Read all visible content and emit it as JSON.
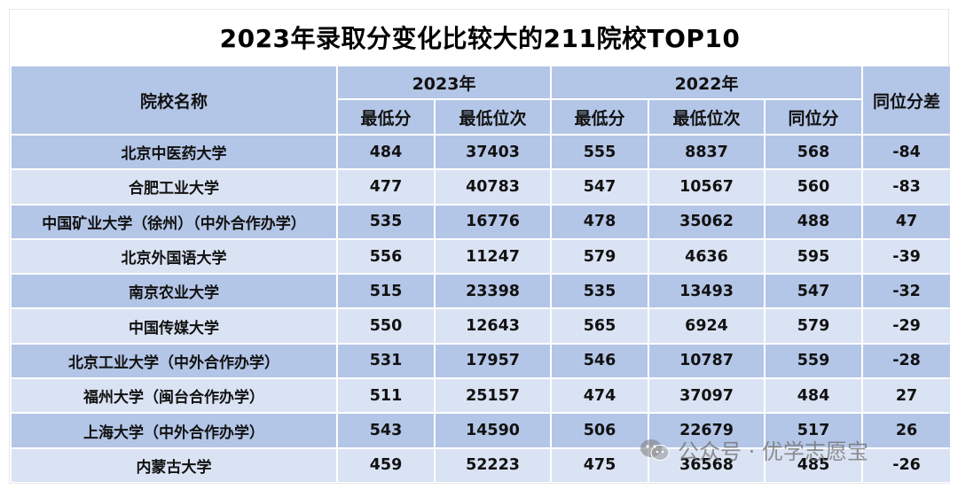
{
  "title": "2023年录取分变化比较大的211院校TOP10",
  "header": {
    "school": "院校名称",
    "year2023": "2023年",
    "year2022": "2022年",
    "diff": "同位分差",
    "min_score": "最低分",
    "min_rank": "最低位次",
    "same_rank_score": "同位分"
  },
  "rows": [
    {
      "school": "北京中医药大学",
      "s23": "484",
      "r23": "37403",
      "s22": "555",
      "r22": "8837",
      "same": "568",
      "diff": "-84"
    },
    {
      "school": "合肥工业大学",
      "s23": "477",
      "r23": "40783",
      "s22": "547",
      "r22": "10567",
      "same": "560",
      "diff": "-83"
    },
    {
      "school": "中国矿业大学（徐州）（中外合作办学）",
      "s23": "535",
      "r23": "16776",
      "s22": "478",
      "r22": "35062",
      "same": "488",
      "diff": "47"
    },
    {
      "school": "北京外国语大学",
      "s23": "556",
      "r23": "11247",
      "s22": "579",
      "r22": "4636",
      "same": "595",
      "diff": "-39"
    },
    {
      "school": "南京农业大学",
      "s23": "515",
      "r23": "23398",
      "s22": "535",
      "r22": "13493",
      "same": "547",
      "diff": "-32"
    },
    {
      "school": "中国传媒大学",
      "s23": "550",
      "r23": "12643",
      "s22": "565",
      "r22": "6924",
      "same": "579",
      "diff": "-29"
    },
    {
      "school": "北京工业大学（中外合作办学）",
      "s23": "531",
      "r23": "17957",
      "s22": "546",
      "r22": "10787",
      "same": "559",
      "diff": "-28"
    },
    {
      "school": "福州大学（闽台合作办学）",
      "s23": "511",
      "r23": "25157",
      "s22": "474",
      "r22": "37097",
      "same": "484",
      "diff": "27"
    },
    {
      "school": "上海大学（中外合作办学）",
      "s23": "543",
      "r23": "14590",
      "s22": "506",
      "r22": "22679",
      "same": "517",
      "diff": "26"
    },
    {
      "school": "内蒙古大学",
      "s23": "459",
      "r23": "52223",
      "s22": "475",
      "r22": "36568",
      "same": "485",
      "diff": "-26"
    }
  ],
  "watermark": {
    "text": "公众号 · 优学志愿宝",
    "icon": "wechat-icon"
  },
  "colors": {
    "header_bg": "#b4c6e7",
    "row_dark": "#b4c6e7",
    "row_light": "#dae3f3"
  }
}
